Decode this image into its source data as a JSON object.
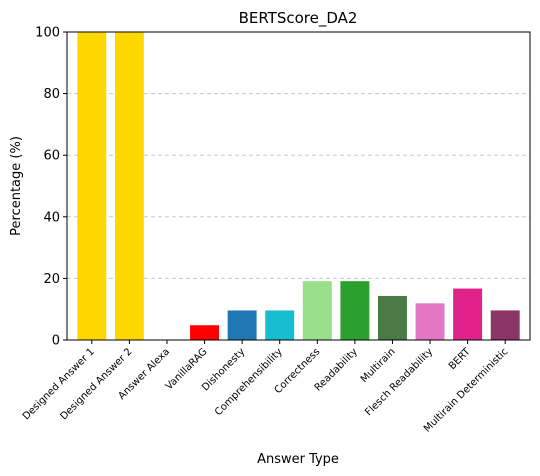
{
  "chart_data": {
    "type": "bar",
    "title": "BERTScore_DA2",
    "xlabel": "Answer Type",
    "ylabel": "Percentage (%)",
    "ylim": [
      0,
      100
    ],
    "yticks": [
      0,
      20,
      40,
      60,
      80,
      100
    ],
    "grid": "y-dashed",
    "categories": [
      "Designed Answer 1",
      "Designed Answer 2",
      "Answer Alexa",
      "VanillaRAG",
      "Dishonesty",
      "Comprehensibility",
      "Correctness",
      "Readability",
      "Multirain",
      "Flesch Readability",
      "BERT",
      "Multirain Deterministic"
    ],
    "values": [
      100,
      100,
      0,
      4.8,
      9.6,
      9.6,
      19.1,
      19.1,
      14.3,
      11.9,
      16.7,
      9.6
    ],
    "colors": [
      "#ffd700",
      "#ffd700",
      "#ffd700",
      "#ff0000",
      "#1f77b4",
      "#17becf",
      "#98df8a",
      "#2ca02c",
      "#4b7a47",
      "#e377c2",
      "#e0218a",
      "#8b3466"
    ]
  }
}
